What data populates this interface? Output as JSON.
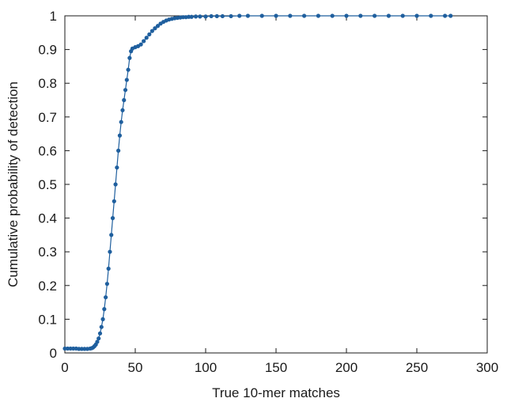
{
  "chart_data": {
    "type": "line",
    "title": "",
    "xlabel": "True 10-mer matches",
    "ylabel": "Cumulative probability of detection",
    "xlim": [
      0,
      300
    ],
    "ylim": [
      0,
      1
    ],
    "x_ticks": [
      0,
      50,
      100,
      150,
      200,
      250,
      300
    ],
    "y_ticks": [
      0,
      0.1,
      0.2,
      0.3,
      0.4,
      0.5,
      0.6,
      0.7,
      0.8,
      0.9,
      1
    ],
    "x_tick_labels": [
      "0",
      "50",
      "100",
      "150",
      "200",
      "250",
      "300"
    ],
    "y_tick_labels": [
      "0",
      "0.1",
      "0.2",
      "0.3",
      "0.4",
      "0.5",
      "0.6",
      "0.7",
      "0.8",
      "0.9",
      "1"
    ],
    "grid": false,
    "legend": "none",
    "series": [
      {
        "color": "#1f5f9e",
        "marker": "circle",
        "points": [
          [
            0,
            0.013
          ],
          [
            2,
            0.013
          ],
          [
            4,
            0.013
          ],
          [
            6,
            0.013
          ],
          [
            8,
            0.013
          ],
          [
            10,
            0.012
          ],
          [
            12,
            0.012
          ],
          [
            14,
            0.012
          ],
          [
            16,
            0.012
          ],
          [
            18,
            0.013
          ],
          [
            19,
            0.014
          ],
          [
            20,
            0.016
          ],
          [
            21,
            0.02
          ],
          [
            22,
            0.025
          ],
          [
            23,
            0.033
          ],
          [
            24,
            0.043
          ],
          [
            25,
            0.058
          ],
          [
            26,
            0.077
          ],
          [
            27,
            0.1
          ],
          [
            28,
            0.13
          ],
          [
            29,
            0.165
          ],
          [
            30,
            0.205
          ],
          [
            31,
            0.25
          ],
          [
            32,
            0.3
          ],
          [
            33,
            0.35
          ],
          [
            34,
            0.4
          ],
          [
            35,
            0.45
          ],
          [
            36,
            0.5
          ],
          [
            37,
            0.55
          ],
          [
            38,
            0.6
          ],
          [
            39,
            0.645
          ],
          [
            40,
            0.685
          ],
          [
            41,
            0.72
          ],
          [
            42,
            0.75
          ],
          [
            43,
            0.78
          ],
          [
            44,
            0.81
          ],
          [
            45,
            0.84
          ],
          [
            46,
            0.875
          ],
          [
            47,
            0.895
          ],
          [
            48,
            0.903
          ],
          [
            50,
            0.907
          ],
          [
            52,
            0.91
          ],
          [
            54,
            0.915
          ],
          [
            56,
            0.925
          ],
          [
            58,
            0.935
          ],
          [
            60,
            0.945
          ],
          [
            62,
            0.955
          ],
          [
            64,
            0.963
          ],
          [
            66,
            0.97
          ],
          [
            68,
            0.977
          ],
          [
            70,
            0.982
          ],
          [
            72,
            0.986
          ],
          [
            74,
            0.989
          ],
          [
            76,
            0.991
          ],
          [
            78,
            0.993
          ],
          [
            80,
            0.994
          ],
          [
            82,
            0.995
          ],
          [
            84,
            0.996
          ],
          [
            86,
            0.996
          ],
          [
            88,
            0.997
          ],
          [
            90,
            0.997
          ],
          [
            93,
            0.998
          ],
          [
            96,
            0.998
          ],
          [
            100,
            0.998
          ],
          [
            104,
            0.999
          ],
          [
            108,
            0.999
          ],
          [
            112,
            0.999
          ],
          [
            118,
            0.999
          ],
          [
            124,
            1
          ],
          [
            130,
            1
          ],
          [
            140,
            1
          ],
          [
            150,
            1
          ],
          [
            160,
            1
          ],
          [
            170,
            1
          ],
          [
            180,
            1
          ],
          [
            190,
            1
          ],
          [
            200,
            1
          ],
          [
            210,
            1
          ],
          [
            220,
            1
          ],
          [
            230,
            1
          ],
          [
            240,
            1
          ],
          [
            250,
            1
          ],
          [
            260,
            1
          ],
          [
            270,
            1
          ],
          [
            274,
            1
          ]
        ]
      }
    ]
  }
}
